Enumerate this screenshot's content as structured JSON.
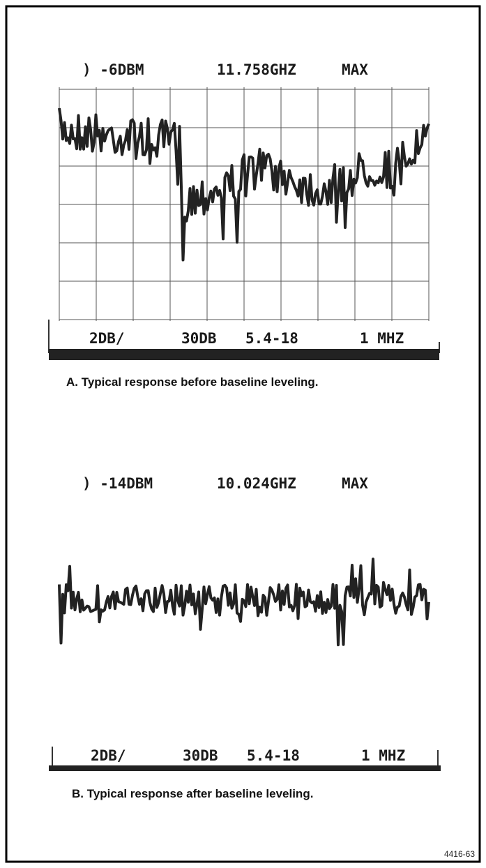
{
  "panels": [
    {
      "header": {
        "reference": ")  -6DBM",
        "frequency": "11.758GHZ",
        "mode": "MAX"
      },
      "footer": {
        "scale": "2DB/",
        "attenuation": "30DB",
        "band": "5.4-18",
        "resolution": "1 MHZ"
      },
      "caption": "A.  Typical response before baseline leveling."
    },
    {
      "header": {
        "reference": ") -14DBM",
        "frequency": "10.024GHZ",
        "mode": "MAX"
      },
      "footer": {
        "scale": "2DB/",
        "attenuation": "30DB",
        "band": "5.4-18",
        "resolution": "1 MHZ"
      },
      "caption": "B.  Typical response after baseline leveling."
    }
  ],
  "figure_id": "4416-63"
}
